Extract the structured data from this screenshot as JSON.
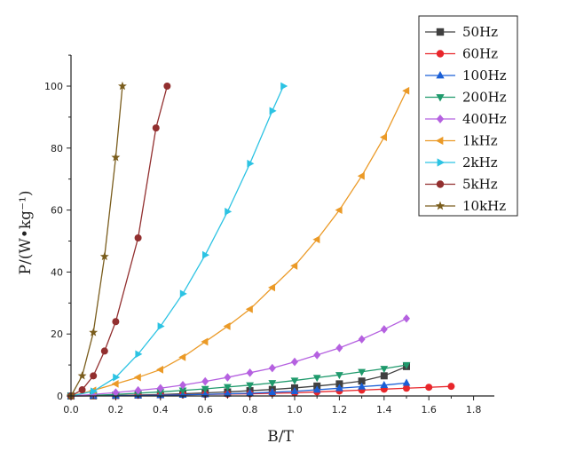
{
  "chart_data": {
    "type": "line",
    "xlabel": "B/T",
    "ylabel": "P/(W•kg⁻¹)",
    "xlim": [
      0,
      1.9
    ],
    "ylim": [
      0,
      110
    ],
    "x_ticks": [
      "0.0",
      "0.2",
      "0.4",
      "0.6",
      "0.8",
      "1.0",
      "1.2",
      "1.4",
      "1.6",
      "1.8"
    ],
    "y_ticks": [
      "0",
      "20",
      "40",
      "60",
      "80",
      "100"
    ],
    "grid": false,
    "legend_position": "top-right",
    "series": [
      {
        "name": "50Hz",
        "color": "#404040",
        "marker": "square",
        "x": [
          0.0,
          0.1,
          0.2,
          0.3,
          0.4,
          0.5,
          0.6,
          0.7,
          0.8,
          0.9,
          1.0,
          1.1,
          1.2,
          1.3,
          1.4,
          1.5
        ],
        "y": [
          0,
          0.05,
          0.15,
          0.3,
          0.45,
          0.7,
          1.0,
          1.3,
          1.7,
          2.1,
          2.6,
          3.2,
          3.9,
          4.8,
          6.5,
          9.5
        ]
      },
      {
        "name": "60Hz",
        "color": "#e8262b",
        "marker": "circle",
        "x": [
          0.0,
          0.1,
          0.2,
          0.3,
          0.4,
          0.5,
          0.6,
          0.7,
          0.8,
          0.9,
          1.0,
          1.1,
          1.2,
          1.3,
          1.4,
          1.5,
          1.6,
          1.7
        ],
        "y": [
          0,
          0.05,
          0.1,
          0.2,
          0.3,
          0.4,
          0.5,
          0.6,
          0.7,
          0.85,
          1.0,
          1.3,
          1.6,
          1.9,
          2.2,
          2.5,
          2.8,
          3.1
        ]
      },
      {
        "name": "100Hz",
        "color": "#1a5fd6",
        "marker": "triangle-up",
        "x": [
          0.0,
          0.1,
          0.2,
          0.3,
          0.4,
          0.5,
          0.6,
          0.7,
          0.8,
          0.9,
          1.0,
          1.1,
          1.2,
          1.3,
          1.4,
          1.5
        ],
        "y": [
          0,
          0.05,
          0.1,
          0.15,
          0.25,
          0.35,
          0.5,
          0.7,
          0.9,
          1.2,
          1.5,
          2.0,
          2.5,
          3.0,
          3.5,
          4.2
        ]
      },
      {
        "name": "200Hz",
        "color": "#1f9a6c",
        "marker": "triangle-down",
        "x": [
          0.0,
          0.1,
          0.2,
          0.3,
          0.4,
          0.5,
          0.6,
          0.7,
          0.8,
          0.9,
          1.0,
          1.1,
          1.2,
          1.3,
          1.4,
          1.5
        ],
        "y": [
          0,
          0.2,
          0.5,
          0.9,
          1.3,
          1.8,
          2.3,
          2.9,
          3.5,
          4.2,
          5.0,
          5.9,
          6.8,
          7.8,
          8.8,
          10.0
        ]
      },
      {
        "name": "400Hz",
        "color": "#b561e0",
        "marker": "diamond",
        "x": [
          0.0,
          0.1,
          0.2,
          0.3,
          0.4,
          0.5,
          0.6,
          0.7,
          0.8,
          0.9,
          1.0,
          1.1,
          1.2,
          1.3,
          1.4,
          1.5
        ],
        "y": [
          0,
          0.5,
          1.1,
          1.8,
          2.5,
          3.5,
          4.7,
          6.0,
          7.5,
          9.0,
          11.0,
          13.2,
          15.5,
          18.3,
          21.5,
          25.0
        ]
      },
      {
        "name": "1kHz",
        "color": "#eb9a27",
        "marker": "triangle-left",
        "x": [
          0.0,
          0.1,
          0.2,
          0.3,
          0.4,
          0.5,
          0.6,
          0.7,
          0.8,
          0.9,
          1.0,
          1.1,
          1.2,
          1.3,
          1.4,
          1.5
        ],
        "y": [
          0,
          1.8,
          3.9,
          6.0,
          8.5,
          12.5,
          17.5,
          22.5,
          28.0,
          35.0,
          42.0,
          50.5,
          60.0,
          71.0,
          83.5,
          98.5
        ]
      },
      {
        "name": "2kHz",
        "color": "#2cc3e3",
        "marker": "triangle-right",
        "x": [
          0.0,
          0.1,
          0.2,
          0.3,
          0.4,
          0.5,
          0.6,
          0.7,
          0.8,
          0.9,
          0.95
        ],
        "y": [
          0,
          1.5,
          6.0,
          13.5,
          22.5,
          33.0,
          45.5,
          59.5,
          75.0,
          92.0,
          100.0
        ]
      },
      {
        "name": "5kHz",
        "color": "#922f2f",
        "marker": "circle",
        "x": [
          0.0,
          0.05,
          0.1,
          0.15,
          0.2,
          0.3,
          0.38,
          0.43
        ],
        "y": [
          0,
          2.0,
          6.5,
          14.5,
          24.0,
          51.0,
          86.5,
          100.0
        ]
      },
      {
        "name": "10kHz",
        "color": "#7a5d1d",
        "marker": "star",
        "x": [
          0.0,
          0.05,
          0.1,
          0.15,
          0.2,
          0.23
        ],
        "y": [
          0,
          6.5,
          20.5,
          45.0,
          77.0,
          100.0
        ]
      }
    ]
  }
}
